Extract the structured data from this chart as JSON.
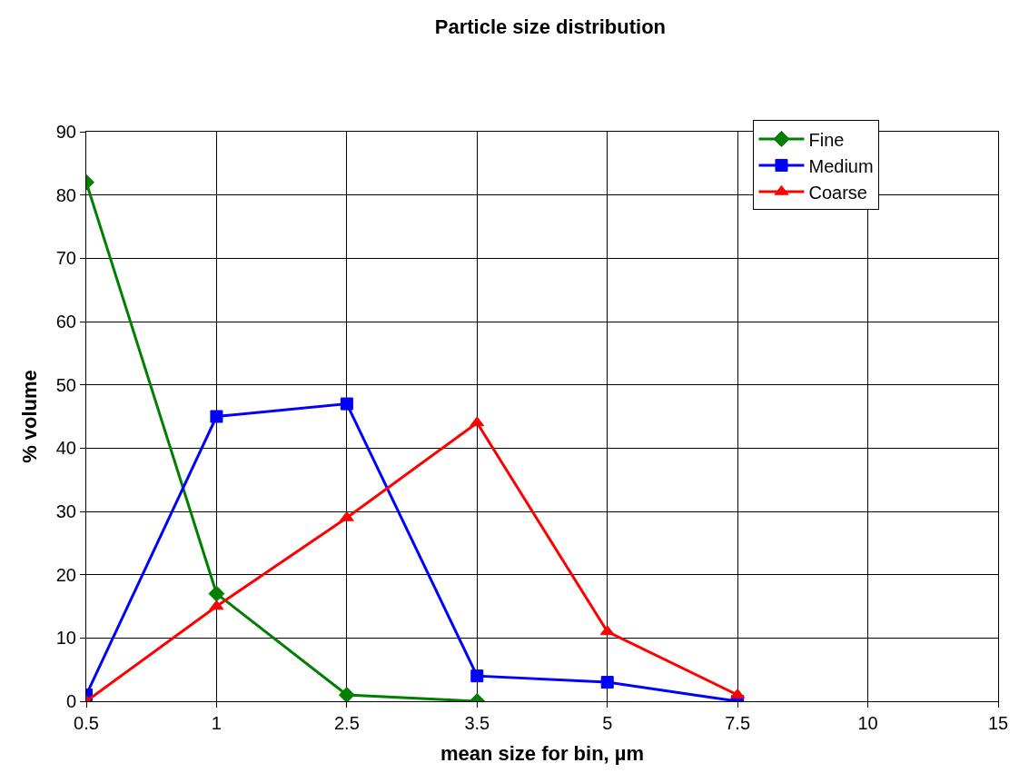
{
  "chart_data": {
    "type": "line",
    "title": "Particle size distribution",
    "xlabel": "mean size for bin, µm",
    "ylabel": "% volume",
    "categories": [
      "0.5",
      "1",
      "2.5",
      "3.5",
      "5",
      "7.5",
      "10",
      "15"
    ],
    "series": [
      {
        "name": "Fine",
        "color": "#008000",
        "marker": "diamond",
        "values": [
          82,
          17,
          1,
          0,
          null,
          null,
          null,
          null
        ]
      },
      {
        "name": "Medium",
        "color": "#0000ff",
        "marker": "square",
        "values": [
          1,
          45,
          47,
          4,
          3,
          0,
          null,
          null
        ]
      },
      {
        "name": "Coarse",
        "color": "#ff0000",
        "marker": "triangle",
        "values": [
          0,
          15,
          29,
          44,
          11,
          1,
          null,
          null
        ]
      }
    ],
    "ylim": [
      0,
      90
    ],
    "yticks": [
      0,
      10,
      20,
      30,
      40,
      50,
      60,
      70,
      80,
      90
    ],
    "grid": true,
    "legend": "top right",
    "line_style": "solid"
  }
}
